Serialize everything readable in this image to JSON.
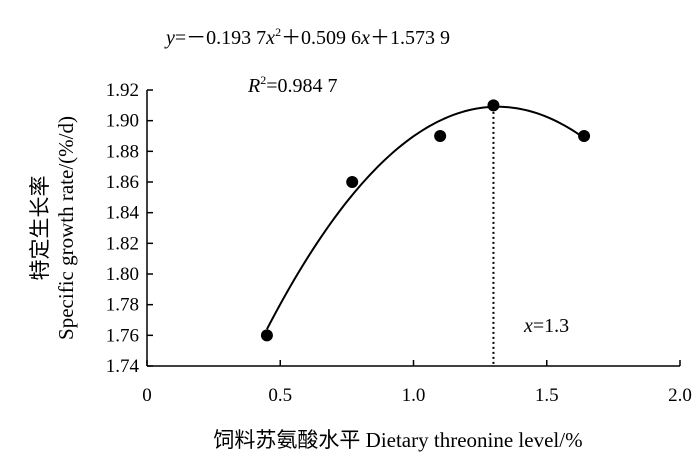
{
  "chart_data": {
    "type": "scatter",
    "x": [
      0.45,
      0.77,
      1.1,
      1.3,
      1.64
    ],
    "y": [
      1.76,
      1.86,
      1.89,
      1.91,
      1.89
    ],
    "xlim": [
      0,
      2.0
    ],
    "ylim": [
      1.74,
      1.92
    ],
    "x_ticks": [
      "0",
      "0.5",
      "1.0",
      "1.5",
      "2.0"
    ],
    "y_ticks": [
      "1.74",
      "1.76",
      "1.78",
      "1.80",
      "1.82",
      "1.84",
      "1.86",
      "1.88",
      "1.90",
      "1.92"
    ],
    "xlabel": "饲料苏氨酸水平  Dietary threonine level/%",
    "ylabel_cn": "特定生长率",
    "ylabel_en": "Specific growth rate/(%/d)",
    "fit": {
      "coefficients": [
        -0.1937,
        0.5096,
        1.5739
      ],
      "x_range": [
        0.45,
        1.64
      ],
      "vertex_x": 1.3
    },
    "equation": {
      "y_var": "y",
      "eq_body": "=－0.193 7",
      "x2_var": "x",
      "x2_sup": "2",
      "mid": "＋0.509 6",
      "x_var": "x",
      "tail": "＋1.573 9"
    },
    "r2": {
      "var": "R",
      "sup": "2",
      "value": "=0.984 7"
    },
    "vertex_label": {
      "var": "x",
      "value": "=1.3"
    },
    "grid": false,
    "legend": "none",
    "colors": {
      "marks": "#000000",
      "background": "#ffffff"
    }
  }
}
